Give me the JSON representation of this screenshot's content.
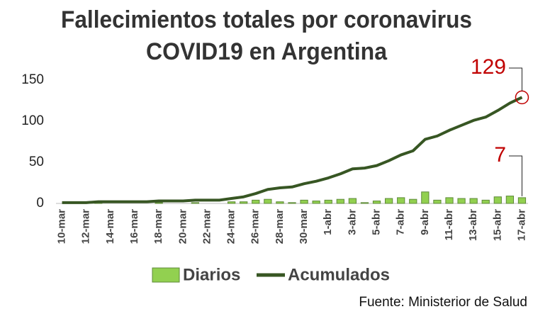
{
  "chart_data": {
    "type": "bar-line",
    "title": [
      "Fallecimientos totales por coronavirus",
      "COVID19 en Argentina"
    ],
    "categories": [
      "10-mar",
      null,
      "12-mar",
      null,
      "14-mar",
      null,
      "16-mar",
      null,
      "18-mar",
      null,
      "20-mar",
      null,
      "22-mar",
      null,
      "24-mar",
      null,
      "26-mar",
      null,
      "28-mar",
      null,
      "30-mar",
      null,
      "1-abr",
      null,
      "3-abr",
      null,
      "5-abr",
      null,
      "7-abr",
      null,
      "9-abr",
      null,
      "11-abr",
      null,
      "13-abr",
      null,
      "15-abr",
      null,
      "17-abr"
    ],
    "series": [
      {
        "name": "Diarios",
        "color": "#92d050",
        "values": [
          0,
          0,
          0,
          1,
          0,
          0,
          0,
          0,
          1,
          0,
          0,
          1,
          0,
          0,
          2,
          2,
          4,
          5,
          2,
          1,
          4,
          3,
          4,
          5,
          6,
          1,
          3,
          6,
          7,
          5,
          14,
          4,
          7,
          6,
          6,
          4,
          8,
          9,
          7
        ]
      },
      {
        "name": "Acumulados",
        "color": "#375623",
        "values": [
          1,
          1,
          1,
          2,
          2,
          2,
          2,
          2,
          3,
          3,
          3,
          4,
          4,
          4,
          6,
          8,
          12,
          17,
          19,
          20,
          24,
          27,
          31,
          36,
          42,
          43,
          46,
          52,
          59,
          64,
          78,
          82,
          89,
          95,
          101,
          105,
          113,
          122,
          129
        ]
      }
    ],
    "ylim": [
      0,
      150
    ],
    "yticks": [
      0,
      50,
      100,
      150
    ],
    "annotations": [
      "129",
      "7"
    ],
    "source": "Fuente: Ministerior de Salud"
  }
}
